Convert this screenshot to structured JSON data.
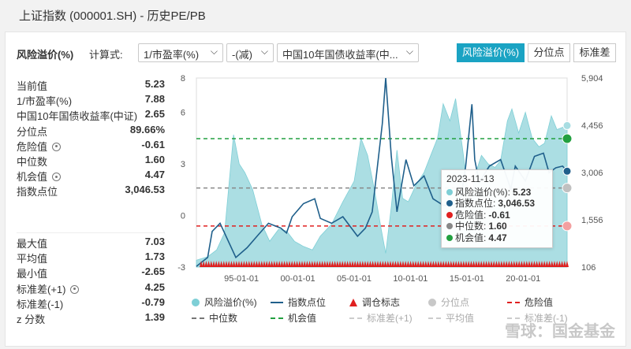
{
  "window_title": "上证指数 (000001.SH) - 历史PE/PB",
  "toolbar": {
    "metric_label": "风险溢价(%)",
    "formula_label": "计算式:",
    "select1": "1/市盈率(%)",
    "select2": "-(减)",
    "select3": "中国10年国债收益率(中...",
    "tabs": [
      "风险溢价(%)",
      "分位点",
      "标准差"
    ]
  },
  "stats_top": [
    {
      "label": "当前值",
      "value": "5.23"
    },
    {
      "label": "1/市盈率(%)",
      "value": "7.88"
    },
    {
      "label": "中国10年国债收益率(中证)",
      "value": "2.65"
    },
    {
      "label": "分位点",
      "value": "89.66%"
    },
    {
      "label": "危险值",
      "value": "-0.61",
      "gear": true
    },
    {
      "label": "中位数",
      "value": "1.60"
    },
    {
      "label": "机会值",
      "value": "4.47",
      "gear": true
    },
    {
      "label": "指数点位",
      "value": "3,046.53"
    }
  ],
  "stats_bottom": [
    {
      "label": "最大值",
      "value": "7.03"
    },
    {
      "label": "平均值",
      "value": "1.73"
    },
    {
      "label": "最小值",
      "value": "-2.65"
    },
    {
      "label": "标准差(+1)",
      "value": "4.25",
      "gear": true
    },
    {
      "label": "标准差(-1)",
      "value": "-0.79"
    },
    {
      "label": "z 分数",
      "value": "1.39"
    }
  ],
  "tooltip": {
    "date": "2023-11-13",
    "rows": [
      {
        "label": "风险溢价(%):",
        "value": "5.23",
        "color": "#7ecfd6"
      },
      {
        "label": "指数点位:",
        "value": "3,046.53",
        "color": "#1f5f8b"
      },
      {
        "label": "危险值:",
        "value": "-0.61",
        "color": "#e02020"
      },
      {
        "label": "中位数:",
        "value": "1.60",
        "color": "#888888"
      },
      {
        "label": "机会值:",
        "value": "4.47",
        "color": "#22a040"
      }
    ]
  },
  "legend": {
    "row1": [
      "风险溢价(%)",
      "指数点位",
      "调仓标志",
      "分位点",
      "危险值"
    ],
    "row2": [
      "中位数",
      "机会值",
      "标准差(+1)",
      "平均值",
      "标准差(-1)"
    ]
  },
  "watermark": "雪球：国金基金",
  "chart_data": {
    "type": "area",
    "x_ticks": [
      "95-01-01",
      "00-01-01",
      "05-01-01",
      "10-01-01",
      "15-01-01",
      "20-01-01"
    ],
    "y_left_ticks": [
      "8",
      "6",
      "3",
      "0",
      "-3"
    ],
    "y_right_ticks": [
      "5,904",
      "4,456",
      "3,006",
      "1,556",
      "106"
    ],
    "y_left_range": [
      -3,
      8
    ],
    "y_right_range": [
      106,
      5904
    ],
    "x_range": [
      1991.0,
      2023.9
    ],
    "reference_lines": {
      "danger": -0.61,
      "median": 1.6,
      "opportunity": 4.47
    },
    "risk_premium": [
      [
        1991.0,
        -2.6
      ],
      [
        1992.0,
        -2.4
      ],
      [
        1992.8,
        -2.0
      ],
      [
        1993.5,
        -1.0
      ],
      [
        1994.3,
        4.7
      ],
      [
        1994.8,
        3.0
      ],
      [
        1995.3,
        2.5
      ],
      [
        1996.0,
        1.5
      ],
      [
        1996.8,
        -0.5
      ],
      [
        1997.5,
        -1.5
      ],
      [
        1998.3,
        -0.8
      ],
      [
        1999.0,
        -0.9
      ],
      [
        1999.7,
        -1.5
      ],
      [
        2000.5,
        -1.8
      ],
      [
        2001.3,
        -2.0
      ],
      [
        2002.0,
        -1.2
      ],
      [
        2003.0,
        -0.5
      ],
      [
        2004.0,
        0.8
      ],
      [
        2005.0,
        2.0
      ],
      [
        2005.6,
        4.5
      ],
      [
        2006.2,
        3.5
      ],
      [
        2006.8,
        1.5
      ],
      [
        2007.4,
        -0.8
      ],
      [
        2007.8,
        -2.2
      ],
      [
        2008.3,
        0.5
      ],
      [
        2008.8,
        3.8
      ],
      [
        2009.3,
        1.0
      ],
      [
        2009.8,
        0.8
      ],
      [
        2010.5,
        1.8
      ],
      [
        2011.2,
        2.5
      ],
      [
        2011.8,
        3.5
      ],
      [
        2012.4,
        4.5
      ],
      [
        2012.9,
        6.5
      ],
      [
        2013.5,
        5.5
      ],
      [
        2014.0,
        6.8
      ],
      [
        2014.6,
        4.0
      ],
      [
        2015.3,
        0.5
      ],
      [
        2015.8,
        2.5
      ],
      [
        2016.3,
        3.5
      ],
      [
        2016.9,
        3.0
      ],
      [
        2017.5,
        2.8
      ],
      [
        2018.0,
        3.2
      ],
      [
        2018.6,
        5.5
      ],
      [
        2019.0,
        6.2
      ],
      [
        2019.6,
        4.8
      ],
      [
        2020.2,
        6.0
      ],
      [
        2020.8,
        4.5
      ],
      [
        2021.4,
        4.0
      ],
      [
        2021.9,
        4.2
      ],
      [
        2022.5,
        5.8
      ],
      [
        2023.0,
        5.0
      ],
      [
        2023.9,
        5.23
      ]
    ],
    "index_level": [
      [
        1991.0,
        127
      ],
      [
        1992.0,
        400
      ],
      [
        1992.4,
        1200
      ],
      [
        1993.1,
        1450
      ],
      [
        1994.5,
        400
      ],
      [
        1995.5,
        700
      ],
      [
        1996.5,
        1100
      ],
      [
        1997.4,
        1450
      ],
      [
        1998.5,
        1300
      ],
      [
        1999.0,
        1150
      ],
      [
        1999.5,
        1650
      ],
      [
        2000.5,
        2050
      ],
      [
        2001.5,
        2200
      ],
      [
        2002.0,
        1600
      ],
      [
        2003.0,
        1450
      ],
      [
        2004.0,
        1650
      ],
      [
        2005.3,
        1050
      ],
      [
        2006.0,
        1300
      ],
      [
        2006.6,
        1800
      ],
      [
        2007.0,
        3000
      ],
      [
        2007.5,
        4500
      ],
      [
        2007.8,
        5904
      ],
      [
        2008.3,
        3500
      ],
      [
        2008.8,
        1800
      ],
      [
        2009.6,
        3400
      ],
      [
        2010.3,
        2600
      ],
      [
        2011.2,
        2900
      ],
      [
        2012.0,
        2200
      ],
      [
        2012.9,
        2000
      ],
      [
        2013.6,
        2000
      ],
      [
        2014.4,
        2050
      ],
      [
        2014.9,
        3200
      ],
      [
        2015.45,
        5100
      ],
      [
        2015.7,
        3400
      ],
      [
        2016.1,
        2700
      ],
      [
        2017.0,
        3200
      ],
      [
        2018.0,
        3400
      ],
      [
        2018.9,
        2500
      ],
      [
        2019.3,
        3200
      ],
      [
        2020.2,
        2750
      ],
      [
        2021.0,
        3500
      ],
      [
        2021.8,
        3600
      ],
      [
        2022.3,
        3000
      ],
      [
        2022.9,
        3150
      ],
      [
        2023.5,
        3200
      ],
      [
        2023.9,
        3046
      ]
    ]
  }
}
